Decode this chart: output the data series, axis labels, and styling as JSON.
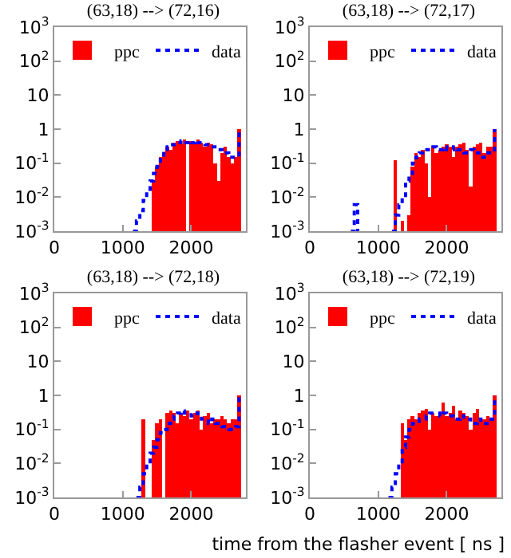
{
  "chart_data": [
    {
      "type": "bar",
      "title": "(63,18) --> (72,16)",
      "log": true,
      "legend": "top",
      "xlim": [
        0,
        2800
      ],
      "xticks": [
        0,
        1000,
        2000
      ],
      "ylim": [
        0.001,
        1000
      ],
      "yticks": [
        {
          "value": 1000,
          "label": "10$^{3}$"
        },
        {
          "value": 100,
          "label": "10$^{2}$"
        },
        {
          "value": 10,
          "label": "10"
        },
        {
          "value": 1,
          "label": "1"
        },
        {
          "value": 0.1,
          "label": "10$^{-1}$"
        },
        {
          "value": 0.01,
          "label": "10$^{-2}$"
        },
        {
          "value": 0.001,
          "label": "10$^{-3}$"
        }
      ],
      "series": [
        {
          "name": "ppc",
          "type": "bar",
          "color": "#ff0000",
          "x": [
            1450,
            1500,
            1550,
            1600,
            1650,
            1700,
            1750,
            1800,
            1850,
            1900,
            1950,
            2000,
            2050,
            2100,
            2150,
            2200,
            2250,
            2300,
            2350,
            2400,
            2450,
            2500,
            2550,
            2600,
            2650,
            2700
          ],
          "values": [
            0.03,
            0.08,
            0.15,
            0.2,
            0.3,
            0.25,
            0.4,
            0.45,
            0.35,
            0.5,
            null,
            0.45,
            0.4,
            0.5,
            0.4,
            0.3,
            0.4,
            0.35,
            0.1,
            0.03,
            0.2,
            0.3,
            0.15,
            0.1,
            0.15,
            1
          ]
        },
        {
          "name": "data",
          "type": "step",
          "color": "#0000ff",
          "line_style": "dotted",
          "x": [
            1150,
            1200,
            1250,
            1300,
            1350,
            1400,
            1450,
            1500,
            1550,
            1600,
            1650,
            1700,
            1750,
            1800,
            1850,
            1900,
            1950,
            2000,
            2050,
            2100,
            2150,
            2200,
            2250,
            2300,
            2350,
            2400,
            2450,
            2500,
            2550,
            2600,
            2650,
            2700
          ],
          "values": [
            0.001,
            0.002,
            0.004,
            0.008,
            0.015,
            0.03,
            0.05,
            0.08,
            0.15,
            0.25,
            0.3,
            0.35,
            0.4,
            0.4,
            0.45,
            0.4,
            0.45,
            0.4,
            0.45,
            0.4,
            0.4,
            0.35,
            0.35,
            0.3,
            0.3,
            0.25,
            0.2,
            0.2,
            0.15,
            0.15,
            0.15,
            1
          ]
        }
      ]
    },
    {
      "type": "bar",
      "title": "(63,18) --> (72,17)",
      "log": true,
      "legend": "top",
      "xlim": [
        0,
        2800
      ],
      "xticks": [
        0,
        1000,
        2000
      ],
      "ylim": [
        0.001,
        1000
      ],
      "yticks": [
        {
          "value": 1000,
          "label": "10$^{3}$"
        },
        {
          "value": 100,
          "label": "10$^{2}$"
        },
        {
          "value": 10,
          "label": "10"
        },
        {
          "value": 1,
          "label": "1"
        },
        {
          "value": 0.1,
          "label": "10$^{-1}$"
        },
        {
          "value": 0.01,
          "label": "10$^{-2}$"
        },
        {
          "value": 0.001,
          "label": "10$^{-3}$"
        }
      ],
      "series": [
        {
          "name": "ppc",
          "type": "bar",
          "color": "#ff0000",
          "x": [
            1250,
            1300,
            1350,
            1400,
            1450,
            1500,
            1550,
            1600,
            1650,
            1700,
            1750,
            1800,
            1850,
            1900,
            1950,
            2000,
            2050,
            2100,
            2150,
            2200,
            2250,
            2300,
            2350,
            2400,
            2450,
            2500,
            2550,
            2600,
            2650,
            2700
          ],
          "values": [
            0.12,
            null,
            0.002,
            null,
            0.003,
            0.08,
            0.2,
            0.15,
            0.25,
            0.1,
            0.01,
            0.3,
            0.2,
            0.25,
            0.3,
            0.35,
            0.3,
            0.15,
            0.3,
            0.35,
            0.4,
            0.25,
            0.02,
            0.3,
            0.35,
            0.4,
            0.2,
            0.3,
            0.3,
            1
          ]
        },
        {
          "name": "data",
          "type": "step",
          "color": "#0000ff",
          "line_style": "dotted",
          "x": [
            600,
            650,
            700,
            750,
            1200,
            1250,
            1300,
            1350,
            1400,
            1450,
            1500,
            1550,
            1600,
            1650,
            1700,
            1750,
            1800,
            1850,
            1900,
            1950,
            2000,
            2050,
            2100,
            2150,
            2200,
            2250,
            2300,
            2350,
            2400,
            2450,
            2500,
            2550,
            2600,
            2650,
            2700
          ],
          "values": [
            0.001,
            0.006,
            0.001,
            null,
            0.001,
            0.003,
            0.006,
            0.01,
            0.03,
            0.05,
            0.1,
            0.15,
            0.2,
            0.25,
            0.25,
            0.25,
            0.3,
            0.25,
            0.25,
            0.3,
            0.25,
            0.25,
            0.3,
            0.25,
            0.25,
            0.2,
            0.2,
            0.25,
            0.2,
            0.2,
            0.15,
            0.2,
            0.2,
            0.2,
            1
          ]
        }
      ]
    },
    {
      "type": "bar",
      "title": "(63,18) --> (72,18)",
      "log": true,
      "legend": "top",
      "xlim": [
        0,
        2800
      ],
      "xticks": [
        0,
        1000,
        2000
      ],
      "ylim": [
        0.001,
        1000
      ],
      "yticks": [
        {
          "value": 1000,
          "label": "10$^{3}$"
        },
        {
          "value": 100,
          "label": "10$^{2}$"
        },
        {
          "value": 10,
          "label": "10"
        },
        {
          "value": 1,
          "label": "1"
        },
        {
          "value": 0.1,
          "label": "10$^{-1}$"
        },
        {
          "value": 0.01,
          "label": "10$^{-2}$"
        },
        {
          "value": 0.001,
          "label": "10$^{-3}$"
        }
      ],
      "series": [
        {
          "name": "ppc",
          "type": "bar",
          "color": "#ff0000",
          "x": [
            1300,
            1350,
            1400,
            1450,
            1500,
            1550,
            1600,
            1650,
            1700,
            1750,
            1800,
            1850,
            1900,
            1950,
            2000,
            2050,
            2100,
            2150,
            2200,
            2250,
            2300,
            2350,
            2400,
            2450,
            2500,
            2550,
            2600,
            2650,
            2700
          ],
          "values": [
            0.2,
            null,
            null,
            0.05,
            0.15,
            0.2,
            null,
            0.3,
            0.35,
            0.3,
            0.15,
            0.3,
            0.25,
            0.35,
            0.2,
            0.3,
            0.35,
            0.1,
            0.25,
            0.3,
            0.15,
            0.2,
            0.2,
            0.25,
            0.2,
            0.15,
            0.2,
            0.2,
            1
          ]
        },
        {
          "name": "data",
          "type": "step",
          "color": "#0000ff",
          "line_style": "dotted",
          "x": [
            1200,
            1250,
            1300,
            1350,
            1400,
            1450,
            1500,
            1550,
            1600,
            1650,
            1700,
            1750,
            1800,
            1850,
            1900,
            1950,
            2000,
            2050,
            2100,
            2150,
            2200,
            2250,
            2300,
            2350,
            2400,
            2450,
            2500,
            2550,
            2600,
            2650,
            2700
          ],
          "values": [
            0.001,
            0.002,
            0.005,
            0.01,
            0.02,
            0.03,
            0.05,
            0.08,
            0.1,
            0.15,
            0.2,
            0.25,
            0.3,
            0.35,
            0.3,
            0.3,
            0.25,
            0.3,
            0.25,
            0.2,
            0.2,
            0.15,
            0.2,
            0.15,
            0.15,
            0.12,
            0.12,
            0.1,
            0.1,
            0.12,
            1
          ]
        }
      ]
    },
    {
      "type": "bar",
      "title": "(63,18) --> (72,19)",
      "xlabel": "time from the flasher event [ ns ]",
      "log": true,
      "legend": "top",
      "xlim": [
        0,
        2800
      ],
      "xticks": [
        0,
        1000,
        2000
      ],
      "ylim": [
        0.001,
        1000
      ],
      "yticks": [
        {
          "value": 1000,
          "label": "10$^{3}$"
        },
        {
          "value": 100,
          "label": "10$^{2}$"
        },
        {
          "value": 10,
          "label": "10"
        },
        {
          "value": 1,
          "label": "1"
        },
        {
          "value": 0.1,
          "label": "10$^{-1}$"
        },
        {
          "value": 0.01,
          "label": "10$^{-2}$"
        },
        {
          "value": 0.001,
          "label": "10$^{-3}$"
        }
      ],
      "series": [
        {
          "name": "ppc",
          "type": "bar",
          "color": "#ff0000",
          "x": [
            1350,
            1400,
            1450,
            1500,
            1550,
            1600,
            1650,
            1700,
            1750,
            1800,
            1850,
            1900,
            1950,
            2000,
            2050,
            2100,
            2150,
            2200,
            2250,
            2300,
            2350,
            2400,
            2450,
            2500,
            2550,
            2600,
            2650,
            2700
          ],
          "values": [
            0.15,
            0.05,
            0.2,
            0.25,
            0.2,
            0.3,
            0.35,
            0.4,
            0.1,
            0.3,
            0.25,
            0.3,
            0.6,
            0.25,
            0.3,
            0.5,
            0.2,
            0.35,
            0.3,
            0.25,
            0.1,
            0.3,
            0.4,
            0.2,
            0.2,
            0.25,
            0.2,
            1
          ]
        },
        {
          "name": "data",
          "type": "step",
          "color": "#0000ff",
          "line_style": "dotted",
          "x": [
            1150,
            1200,
            1250,
            1300,
            1350,
            1400,
            1450,
            1500,
            1550,
            1600,
            1650,
            1700,
            1750,
            1800,
            1850,
            1900,
            1950,
            2000,
            2050,
            2100,
            2150,
            2200,
            2250,
            2300,
            2350,
            2400,
            2450,
            2500,
            2550,
            2600,
            2650,
            2700
          ],
          "values": [
            0.001,
            0.002,
            0.005,
            0.01,
            0.03,
            0.06,
            0.1,
            0.15,
            0.15,
            0.2,
            0.2,
            0.25,
            0.3,
            0.3,
            0.3,
            0.25,
            0.3,
            0.25,
            0.25,
            0.2,
            0.2,
            0.25,
            0.2,
            0.2,
            0.15,
            0.15,
            0.2,
            0.15,
            0.15,
            0.15,
            0.2,
            1
          ]
        }
      ]
    }
  ]
}
